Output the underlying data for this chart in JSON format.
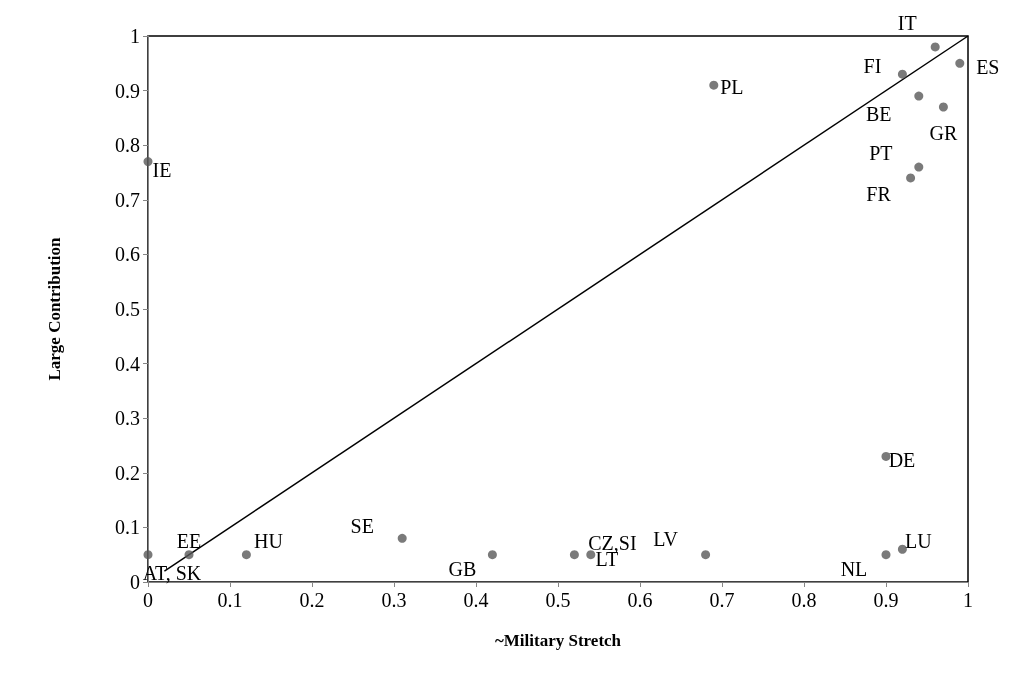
{
  "chart_data": {
    "type": "scatter",
    "xlabel": "~Military Stretch",
    "ylabel": "Large Contribution",
    "xlim": [
      0,
      1
    ],
    "ylim": [
      0,
      1
    ],
    "xticks": [
      0,
      0.1,
      0.2,
      0.3,
      0.4,
      0.5,
      0.6,
      0.7,
      0.8,
      0.9,
      1
    ],
    "yticks": [
      0,
      0.1,
      0.2,
      0.3,
      0.4,
      0.5,
      0.6,
      0.7,
      0.8,
      0.9,
      1
    ],
    "grid": false,
    "series": [
      {
        "marker": "circle",
        "color": "#595959",
        "x": [
          0,
          0.69,
          0.96,
          0.92,
          0.99,
          0.94,
          0.97,
          0.94,
          0.93,
          0.9,
          0.92,
          0.9,
          0.68,
          0.54,
          0.52,
          0.42,
          0.31,
          0.12,
          0.05,
          0
        ],
        "values": [
          0.77,
          0.91,
          0.98,
          0.93,
          0.95,
          0.89,
          0.87,
          0.76,
          0.74,
          0.23,
          0.06,
          0.05,
          0.05,
          0.05,
          0.05,
          0.05,
          0.08,
          0.05,
          0.05,
          0.05
        ]
      },
      {
        "type": "line",
        "marker": "none",
        "color": "#000000",
        "x": [
          0.02,
          1
        ],
        "values": [
          0.02,
          1
        ]
      }
    ],
    "annotations": [
      {
        "text": "IE",
        "x": 0,
        "y": 0.77
      },
      {
        "text": "PL",
        "x": 0.69,
        "y": 0.91
      },
      {
        "text": "IT",
        "x": 0.96,
        "y": 0.98
      },
      {
        "text": "FI",
        "x": 0.92,
        "y": 0.93
      },
      {
        "text": "ES",
        "x": 0.99,
        "y": 0.95
      },
      {
        "text": "BE",
        "x": 0.94,
        "y": 0.89
      },
      {
        "text": "GR",
        "x": 0.97,
        "y": 0.87
      },
      {
        "text": "PT",
        "x": 0.94,
        "y": 0.76
      },
      {
        "text": "FR",
        "x": 0.93,
        "y": 0.74
      },
      {
        "text": "DE",
        "x": 0.9,
        "y": 0.23
      },
      {
        "text": "LU",
        "x": 0.92,
        "y": 0.06
      },
      {
        "text": "NL",
        "x": 0.9,
        "y": 0.05
      },
      {
        "text": "LV",
        "x": 0.68,
        "y": 0.05
      },
      {
        "text": "LT",
        "x": 0.54,
        "y": 0.05
      },
      {
        "text": "CZ,SI",
        "x": 0.52,
        "y": 0.05
      },
      {
        "text": "GB",
        "x": 0.42,
        "y": 0.05
      },
      {
        "text": "SE",
        "x": 0.31,
        "y": 0.08
      },
      {
        "text": "HU",
        "x": 0.12,
        "y": 0.05
      },
      {
        "text": "EE",
        "x": 0.05,
        "y": 0.05
      },
      {
        "text": "AT, SK",
        "x": 0,
        "y": 0.05
      }
    ]
  }
}
